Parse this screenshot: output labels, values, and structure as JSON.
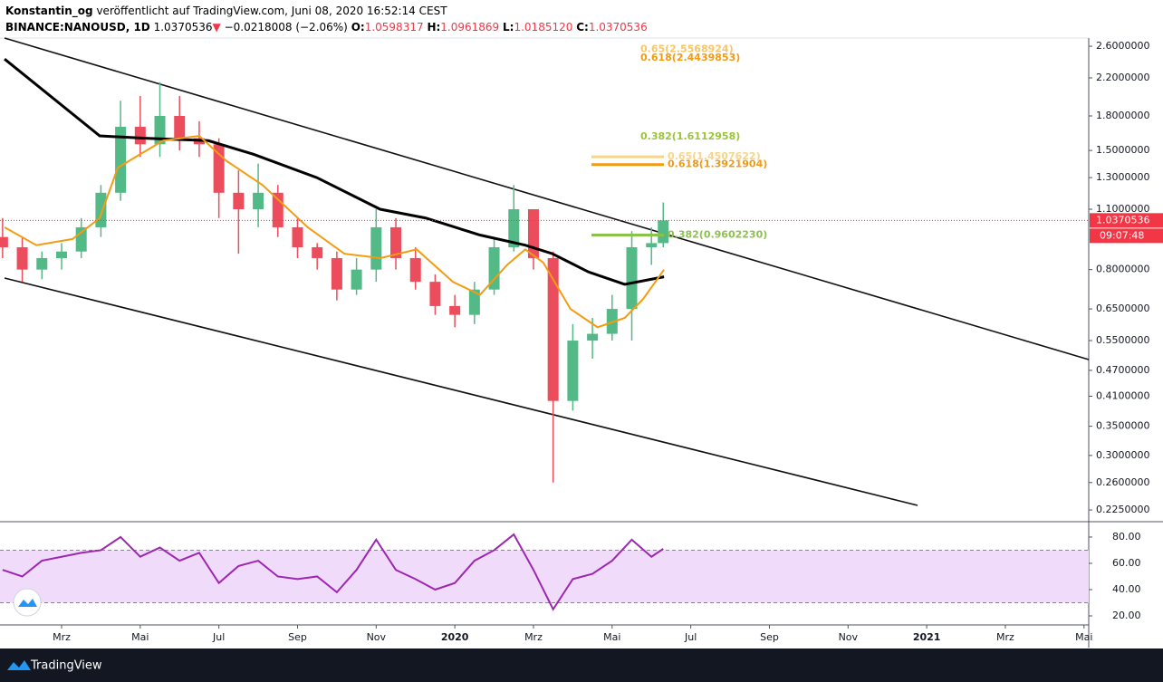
{
  "header": {
    "author": "Konstantin_og",
    "published": "veröffentlicht auf TradingView.com, Juni 08, 2020 16:52:14 CEST",
    "symbol": "BINANCE:NANOUSD, 1D",
    "arrow": "▼",
    "change": "−0.0218008 (−2.06%)",
    "ohlc": [
      {
        "label": "O:",
        "value": "1.0598317"
      },
      {
        "label": "H:",
        "value": "1.0961869"
      },
      {
        "label": "L:",
        "value": "1.0185120"
      },
      {
        "label": "C:",
        "value": "1.0370536"
      }
    ]
  },
  "footer": {
    "brand": "TradingView"
  },
  "chart_data": [
    {
      "type": "candlestick",
      "log_scale": true,
      "grid": false,
      "up_color": "#53b987",
      "down_color": "#eb4d5c",
      "x": [
        0.5,
        1,
        1.5,
        2,
        2.5,
        3,
        3.5,
        4,
        4.5,
        5,
        5.5,
        6,
        6.5,
        7,
        7.5,
        8,
        8.5,
        9,
        9.5,
        10,
        10.5,
        11,
        11.5,
        12,
        12.5,
        13,
        13.5,
        14,
        14.5,
        15,
        15.5,
        16,
        16.5,
        17,
        17.3
      ],
      "open": [
        0.95,
        0.9,
        0.8,
        0.85,
        0.88,
        1.0,
        1.2,
        1.7,
        1.55,
        1.8,
        1.6,
        1.55,
        1.2,
        1.1,
        1.2,
        1.0,
        0.9,
        0.85,
        0.72,
        0.8,
        1.0,
        0.85,
        0.75,
        0.66,
        0.63,
        0.72,
        0.9,
        1.1,
        0.85,
        0.4,
        0.55,
        0.57,
        0.65,
        0.9,
        0.92
      ],
      "high": [
        1.05,
        0.95,
        0.88,
        0.92,
        1.05,
        1.25,
        1.95,
        2.0,
        2.15,
        2.0,
        1.75,
        1.6,
        1.35,
        1.4,
        1.25,
        1.05,
        0.92,
        0.88,
        0.85,
        1.1,
        1.05,
        0.9,
        0.78,
        0.7,
        0.75,
        0.95,
        1.25,
        1.1,
        0.88,
        0.6,
        0.62,
        0.7,
        0.98,
        1.0,
        1.14
      ],
      "low": [
        0.85,
        0.75,
        0.76,
        0.8,
        0.85,
        0.95,
        1.15,
        1.45,
        1.45,
        1.5,
        1.45,
        1.05,
        0.87,
        1.0,
        0.95,
        0.85,
        0.8,
        0.68,
        0.7,
        0.75,
        0.8,
        0.72,
        0.63,
        0.59,
        0.6,
        0.7,
        0.88,
        0.8,
        0.26,
        0.38,
        0.5,
        0.55,
        0.55,
        0.82,
        0.9
      ],
      "close": [
        0.9,
        0.8,
        0.85,
        0.88,
        1.0,
        1.2,
        1.7,
        1.55,
        1.8,
        1.6,
        1.55,
        1.2,
        1.1,
        1.2,
        1.0,
        0.9,
        0.85,
        0.72,
        0.8,
        1.0,
        0.85,
        0.75,
        0.66,
        0.63,
        0.72,
        0.9,
        1.1,
        0.85,
        0.4,
        0.55,
        0.57,
        0.65,
        0.9,
        0.92,
        1.0370536
      ],
      "moving_averages": [
        {
          "color": "#000000",
          "width": 3,
          "x": [
            0.55,
            2.97,
            4.12,
            5.73,
            6.88,
            8.49,
            10.1,
            11.26,
            12.64,
            13.79,
            14.48,
            15.4,
            16.32,
            17.32
          ],
          "values": [
            2.43,
            1.62,
            1.6,
            1.58,
            1.47,
            1.3,
            1.1,
            1.05,
            0.96,
            0.91,
            0.87,
            0.79,
            0.74,
            0.77
          ]
        },
        {
          "color": "#f39c12",
          "width": 2,
          "x": [
            0.55,
            1.36,
            2.28,
            2.97,
            3.43,
            4.58,
            5.5,
            6.19,
            7.11,
            8.26,
            9.19,
            10.11,
            11.03,
            11.95,
            12.64,
            13.33,
            13.79,
            14.25,
            14.94,
            15.63,
            16.32,
            16.79,
            17.32
          ],
          "values": [
            1.0,
            0.91,
            0.94,
            1.05,
            1.37,
            1.58,
            1.62,
            1.42,
            1.25,
            1.0,
            0.87,
            0.85,
            0.89,
            0.75,
            0.7,
            0.82,
            0.89,
            0.83,
            0.65,
            0.59,
            0.62,
            0.685,
            0.8
          ]
        }
      ],
      "annotations": [
        {
          "label": "0.65(2.5568924)",
          "value": 2.5568924,
          "color": "#f7c56b",
          "line": false
        },
        {
          "label": "0.618(2.4439853)",
          "value": 2.4439853,
          "color": "#f29a10",
          "line": false
        },
        {
          "label": "0.382(1.6112958)",
          "value": 1.6112958,
          "color": "#9ac43a",
          "line": false
        },
        {
          "label": "0.65(1.4507622)",
          "value": 1.4507622,
          "color": "#f6d48a",
          "line": true
        },
        {
          "label": "0.618(1.3921904)",
          "value": 1.3921904,
          "color": "#f29a10",
          "line": true
        },
        {
          "label": "0.382(0.9602230)",
          "value": 0.960223,
          "color": "#8bc34a",
          "line": true
        }
      ],
      "last_price": 1.0370536,
      "last_price_color": "#f23645",
      "countdown": "09:07:48",
      "xlim": [
        0.434,
        28.12
      ],
      "ylim": [
        0.2125,
        2.715
      ],
      "yticks": [
        {
          "value": 2.6,
          "label": "2.6000000"
        },
        {
          "value": 2.2,
          "label": "2.2000000"
        },
        {
          "value": 1.8,
          "label": "1.8000000"
        },
        {
          "value": 1.5,
          "label": "1.5000000"
        },
        {
          "value": 1.3,
          "label": "1.3000000"
        },
        {
          "value": 1.1,
          "label": "1.1000000"
        },
        {
          "value": 0.8,
          "label": "0.8000000"
        },
        {
          "value": 0.65,
          "label": "0.6500000"
        },
        {
          "value": 0.55,
          "label": "0.5500000"
        },
        {
          "value": 0.47,
          "label": "0.4700000"
        },
        {
          "value": 0.41,
          "label": "0.4100000"
        },
        {
          "value": 0.35,
          "label": "0.3500000"
        },
        {
          "value": 0.3,
          "label": "0.3000000"
        },
        {
          "value": 0.26,
          "label": "0.2600000"
        },
        {
          "value": 0.225,
          "label": "0.2250000"
        }
      ]
    },
    {
      "type": "line",
      "color": "#9c27b0",
      "band": [
        30,
        70
      ],
      "band_color": "#f1dbfa",
      "x": [
        0.5,
        1,
        1.5,
        2,
        2.5,
        3,
        3.5,
        4,
        4.5,
        5,
        5.5,
        6,
        6.5,
        7,
        7.5,
        8,
        8.5,
        9,
        9.5,
        10,
        10.5,
        11,
        11.5,
        12,
        12.5,
        13,
        13.5,
        14,
        14.5,
        15,
        15.5,
        16,
        16.5,
        17,
        17.3
      ],
      "values": [
        55,
        50,
        62,
        65,
        68,
        70,
        80,
        65,
        72,
        62,
        68,
        45,
        58,
        62,
        50,
        48,
        50,
        38,
        55,
        78,
        55,
        48,
        40,
        45,
        62,
        70,
        82,
        55,
        25,
        48,
        52,
        62,
        78,
        65,
        71
      ],
      "xlim": [
        0.434,
        28.12
      ],
      "ylim": [
        13.1,
        91
      ],
      "yticks": [
        {
          "value": 80,
          "label": "80.00"
        },
        {
          "value": 60,
          "label": "60.00"
        },
        {
          "value": 40,
          "label": "40.00"
        },
        {
          "value": 20,
          "label": "20.00"
        }
      ],
      "xticks": [
        {
          "value": 2,
          "label": "Mrz"
        },
        {
          "value": 4,
          "label": "Mai"
        },
        {
          "value": 6,
          "label": "Jul"
        },
        {
          "value": 8,
          "label": "Sep"
        },
        {
          "value": 10,
          "label": "Nov"
        },
        {
          "value": 12,
          "label": "2020"
        },
        {
          "value": 14,
          "label": "Mrz"
        },
        {
          "value": 16,
          "label": "Mai"
        },
        {
          "value": 18,
          "label": "Jul"
        },
        {
          "value": 20,
          "label": "Sep"
        },
        {
          "value": 22,
          "label": "Nov"
        },
        {
          "value": 24,
          "label": "2021"
        },
        {
          "value": 26,
          "label": "Mrz"
        },
        {
          "value": 28,
          "label": "Mai"
        }
      ]
    }
  ]
}
